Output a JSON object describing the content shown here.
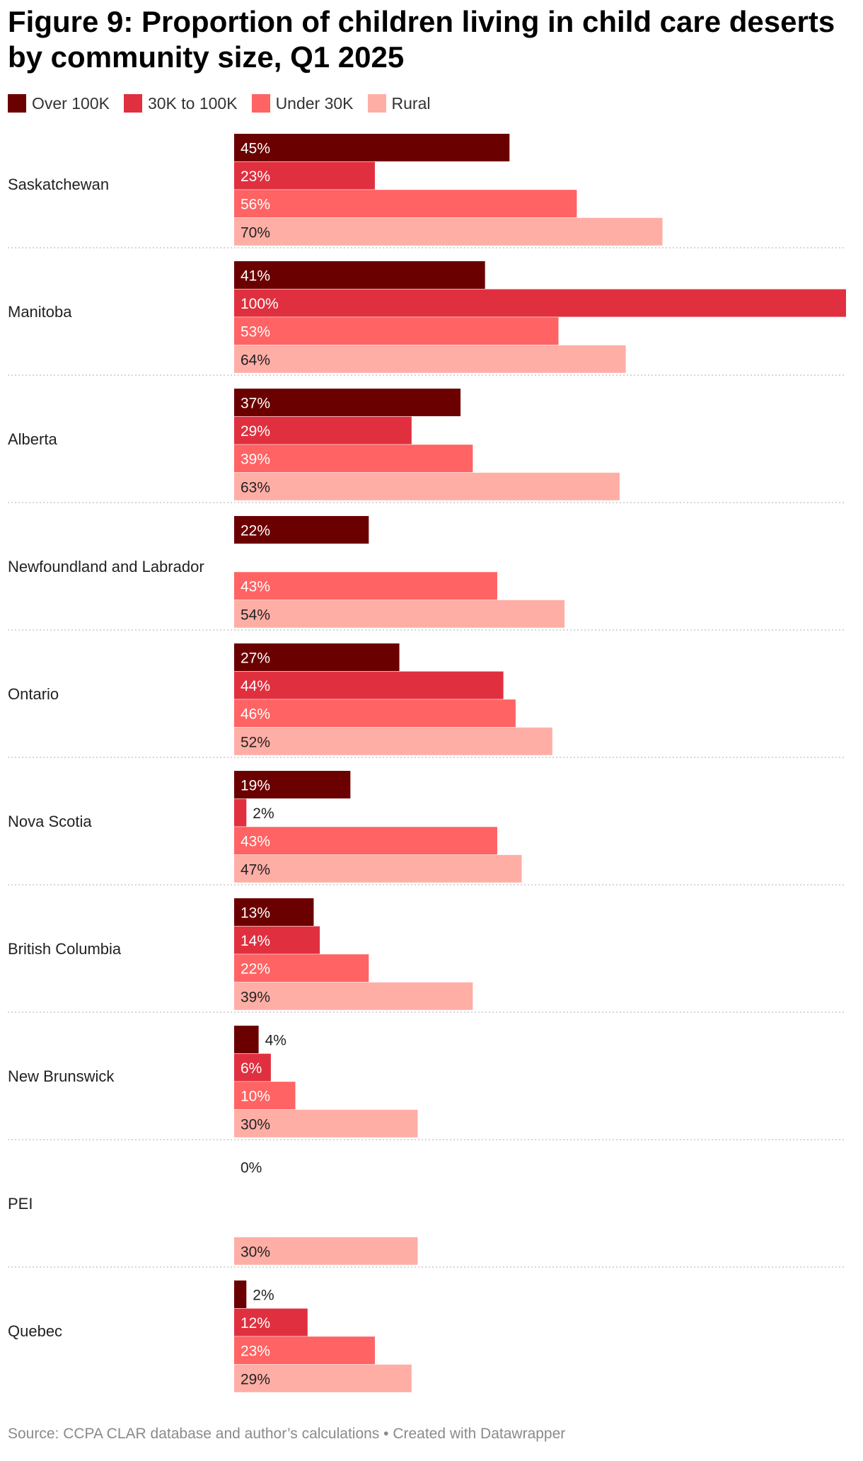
{
  "chart_data": {
    "type": "bar",
    "orientation": "horizontal-grouped",
    "title": "Figure 9: Proportion of children living in child care deserts by community size, Q1 2025",
    "xlabel": "",
    "ylabel": "",
    "xlim": [
      0,
      100
    ],
    "value_suffix": "%",
    "categories": [
      "Saskatchewan",
      "Manitoba",
      "Alberta",
      "Newfoundland and Labrador",
      "Ontario",
      "Nova Scotia",
      "British Columbia",
      "New Brunswick",
      "PEI",
      "Quebec"
    ],
    "series": [
      {
        "name": "Over 100K",
        "color": "#6b0000",
        "label_color": "#ffffff",
        "values": [
          45,
          41,
          37,
          22,
          27,
          19,
          13,
          4,
          0,
          2
        ]
      },
      {
        "name": "30K to 100K",
        "color": "#e0303f",
        "label_color": "#ffffff",
        "values": [
          23,
          100,
          29,
          null,
          44,
          2,
          14,
          6,
          null,
          12
        ]
      },
      {
        "name": "Under 30K",
        "color": "#ff6363",
        "label_color": "#ffffff",
        "values": [
          56,
          53,
          39,
          43,
          46,
          43,
          22,
          10,
          null,
          23
        ]
      },
      {
        "name": "Rural",
        "color": "#ffaea6",
        "label_color": "#222222",
        "values": [
          70,
          64,
          63,
          54,
          52,
          47,
          39,
          30,
          30,
          29
        ]
      }
    ],
    "legend_position": "top-left",
    "grid": false
  },
  "source": "Source: CCPA CLAR database and author’s calculations • Created with Datawrapper"
}
